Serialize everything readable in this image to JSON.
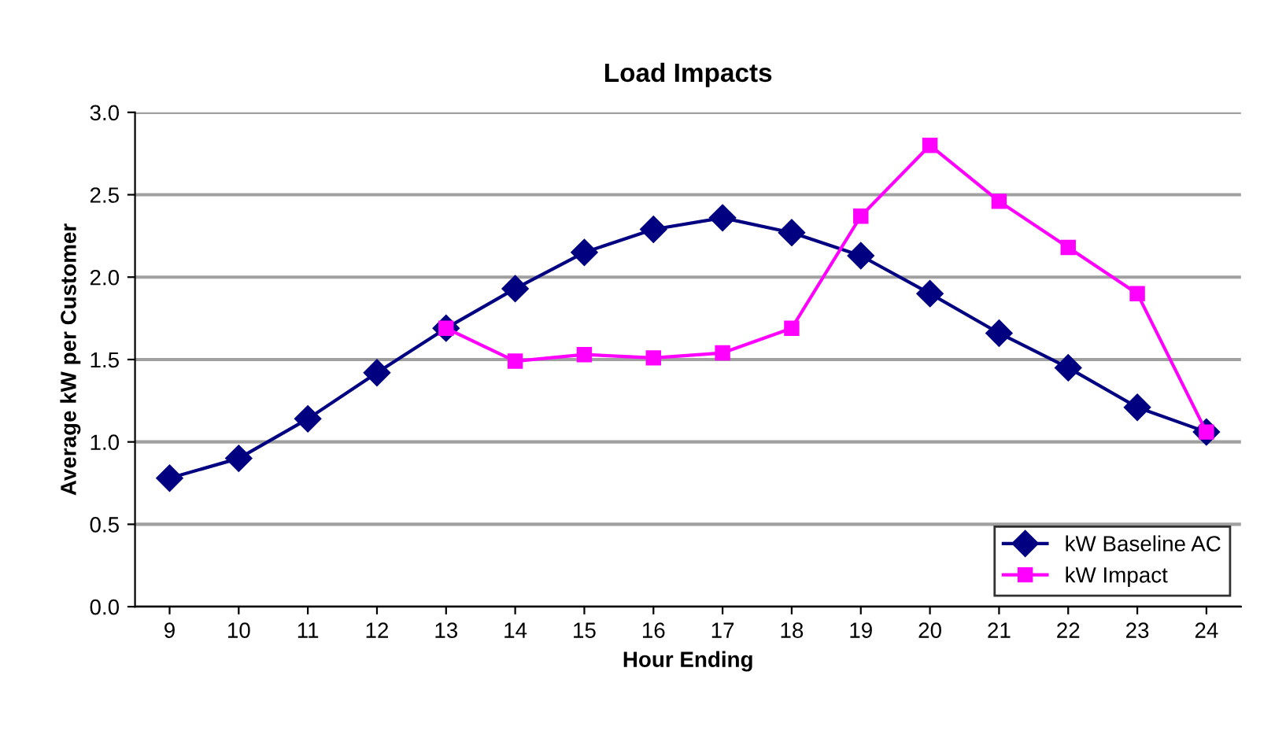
{
  "chart_data": {
    "type": "line",
    "title": "Load Impacts",
    "xlabel": "Hour Ending",
    "ylabel": "Average kW per Customer",
    "categories": [
      "9",
      "10",
      "11",
      "12",
      "13",
      "14",
      "15",
      "16",
      "17",
      "18",
      "19",
      "20",
      "21",
      "22",
      "23",
      "24"
    ],
    "series": [
      {
        "name": "kW Baseline AC",
        "color": "#000080",
        "marker": "diamond",
        "values": [
          0.78,
          0.9,
          1.14,
          1.42,
          1.69,
          1.93,
          2.15,
          2.29,
          2.36,
          2.27,
          2.13,
          1.9,
          1.66,
          1.45,
          1.21,
          1.06
        ]
      },
      {
        "name": "kW Impact",
        "color": "#ff00ff",
        "marker": "square",
        "values": [
          null,
          null,
          null,
          null,
          1.69,
          1.49,
          1.53,
          1.51,
          1.54,
          1.69,
          2.37,
          2.8,
          2.46,
          2.18,
          1.9,
          1.06
        ]
      }
    ],
    "ylim": [
      0,
      3
    ],
    "yticks": [
      {
        "value": 0,
        "label": "0.0"
      },
      {
        "value": 0.5,
        "label": "0.5"
      },
      {
        "value": 1,
        "label": "1.0"
      },
      {
        "value": 1.5,
        "label": "1.5"
      },
      {
        "value": 2,
        "label": "2.0"
      },
      {
        "value": 2.5,
        "label": "2.5"
      },
      {
        "value": 3,
        "label": "3.0"
      }
    ],
    "grid": "y",
    "legend": "bottom right",
    "line_style": "solid"
  }
}
